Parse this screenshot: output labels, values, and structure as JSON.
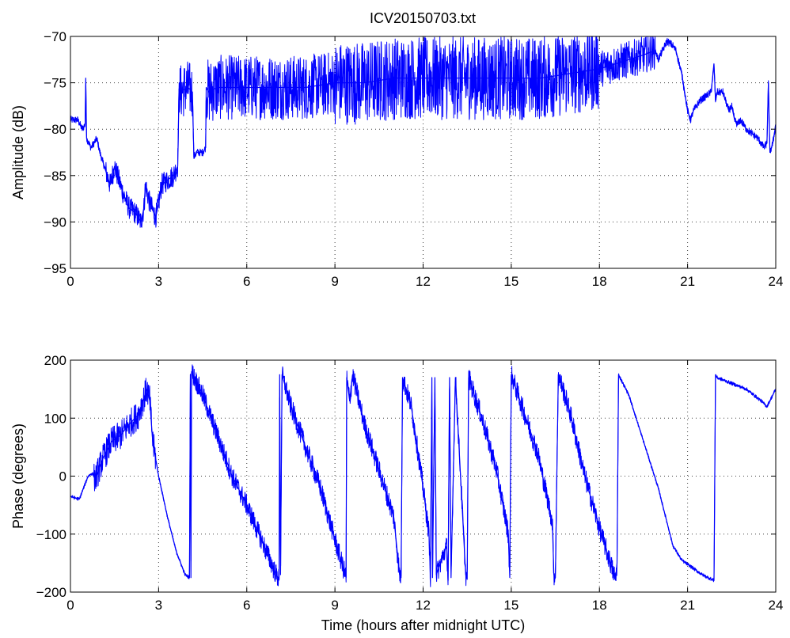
{
  "figure": {
    "title": "ICV20150703.txt"
  },
  "chart_data": [
    {
      "type": "line",
      "title": "ICV20150703.txt",
      "xlabel": "",
      "ylabel": "Amplitude (dB)",
      "xlim": [
        0,
        24
      ],
      "ylim": [
        -95,
        -70
      ],
      "xticks": [
        0,
        3,
        6,
        9,
        12,
        15,
        18,
        21,
        24
      ],
      "yticks": [
        -95,
        -90,
        -85,
        -80,
        -75,
        -70
      ],
      "grid": true,
      "line_color": "#0000ff",
      "series": [
        {
          "x": [
            0,
            0.25,
            0.4,
            0.5,
            0.52,
            0.55,
            0.7,
            0.9,
            1.0,
            1.2,
            1.35,
            1.5,
            1.7,
            1.8,
            2.0,
            2.2,
            2.4,
            2.5,
            2.55,
            2.7,
            2.9,
            3.0,
            3.1,
            3.3,
            3.5,
            3.65,
            3.7,
            3.72,
            4.0,
            4.15,
            4.2,
            4.3,
            4.5,
            4.6,
            4.62,
            4.7,
            5.0,
            5.5,
            6.0,
            7.0,
            8.0,
            9.0,
            10.0,
            11.0,
            12.0,
            13.0,
            14.0,
            15.0,
            16.0,
            17.0,
            18.0,
            18.5,
            19.0,
            19.5,
            19.9,
            20.0,
            20.3,
            20.5,
            20.6,
            20.8,
            21.0,
            21.1,
            21.2,
            21.4,
            21.6,
            21.8,
            21.9,
            21.95,
            22.0,
            22.2,
            22.4,
            22.5,
            22.6,
            22.7,
            22.8,
            23.0,
            23.2,
            23.4,
            23.6,
            23.7,
            23.75,
            23.8,
            23.9,
            24.0
          ],
          "y": [
            -79,
            -79,
            -80,
            -79.5,
            -74.5,
            -81,
            -82,
            -81,
            -82.5,
            -84.5,
            -86,
            -84,
            -86,
            -87,
            -88.5,
            -89,
            -90,
            -88.5,
            -86,
            -88,
            -89.5,
            -88,
            -86,
            -85.5,
            -85,
            -84,
            -75,
            -76,
            -75.5,
            -76,
            -83,
            -82.5,
            -82.5,
            -82,
            -75.5,
            -76,
            -75.5,
            -75.5,
            -75.5,
            -75.5,
            -75.5,
            -75,
            -75,
            -74.5,
            -74.5,
            -74.5,
            -74.5,
            -74.5,
            -74.5,
            -74,
            -73.5,
            -73,
            -72.5,
            -72,
            -71.5,
            -72.5,
            -70.5,
            -71,
            -71.5,
            -74,
            -78,
            -79,
            -78,
            -77,
            -76.5,
            -76,
            -73,
            -77,
            -76,
            -76,
            -78,
            -77.5,
            -79,
            -79.5,
            -79,
            -80,
            -80.5,
            -81,
            -82,
            -81.5,
            -75,
            -82.5,
            -81.5,
            -79.5
          ]
        }
      ]
    },
    {
      "type": "line",
      "title": "",
      "xlabel": "Time (hours after midnight UTC)",
      "ylabel": "Phase (degrees)",
      "xlim": [
        0,
        24
      ],
      "ylim": [
        -200,
        200
      ],
      "xticks": [
        0,
        3,
        6,
        9,
        12,
        15,
        18,
        21,
        24
      ],
      "yticks": [
        -200,
        -100,
        0,
        100,
        200
      ],
      "grid": true,
      "line_color": "#0000ff",
      "series": [
        {
          "x": [
            0,
            0.3,
            0.45,
            0.6,
            0.75,
            0.85,
            1.1,
            1.4,
            1.7,
            2.0,
            2.3,
            2.6,
            2.7,
            2.8,
            3.0,
            3.3,
            3.6,
            3.9,
            4.05,
            4.08,
            4.1,
            4.12,
            4.5,
            5.0,
            5.5,
            6.0,
            6.5,
            7.0,
            7.1,
            7.12,
            7.15,
            7.2,
            7.5,
            8.0,
            8.5,
            9.0,
            9.35,
            9.38,
            9.4,
            9.5,
            9.6,
            10.0,
            10.5,
            11.0,
            11.2,
            11.25,
            11.3,
            11.6,
            12.0,
            12.2,
            12.25,
            12.3,
            12.32,
            12.4,
            12.45,
            12.8,
            12.85,
            12.9,
            12.95,
            13.1,
            13.45,
            13.5,
            13.55,
            14.0,
            14.5,
            14.9,
            14.95,
            15.0,
            15.3,
            15.9,
            16.4,
            16.45,
            16.5,
            16.6,
            17.0,
            17.5,
            18.0,
            18.5,
            18.55,
            18.6,
            18.65,
            19.0,
            19.5,
            20.0,
            20.5,
            20.8,
            21.5,
            21.9,
            21.95,
            22.0,
            22.5,
            23.0,
            23.5,
            23.7,
            24.0
          ],
          "y": [
            -35,
            -40,
            -20,
            0,
            5,
            -5,
            30,
            60,
            70,
            90,
            105,
            150,
            130,
            60,
            0,
            -70,
            -130,
            -170,
            -175,
            175,
            -175,
            180,
            140,
            70,
            0,
            -50,
            -110,
            -170,
            -178,
            175,
            -170,
            175,
            120,
            50,
            -20,
            -110,
            -170,
            -175,
            170,
            130,
            175,
            90,
            10,
            -70,
            -170,
            -175,
            170,
            120,
            -20,
            -100,
            -175,
            170,
            -175,
            170,
            -170,
            -120,
            -180,
            170,
            -175,
            170,
            -170,
            -178,
            170,
            100,
            10,
            -100,
            -175,
            175,
            130,
            40,
            -80,
            -170,
            -175,
            175,
            110,
            0,
            -90,
            -170,
            -178,
            -150,
            175,
            140,
            60,
            -20,
            -120,
            -145,
            -170,
            -180,
            175,
            170,
            160,
            150,
            130,
            120,
            150
          ]
        }
      ]
    }
  ]
}
